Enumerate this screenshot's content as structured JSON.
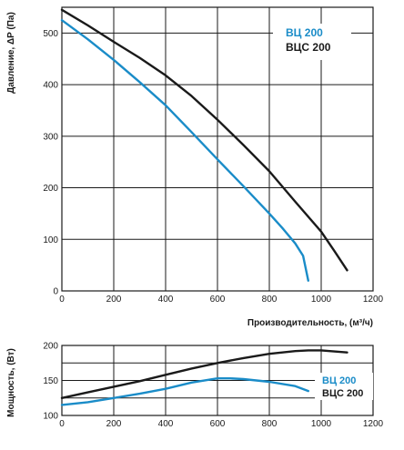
{
  "colors": {
    "blue": "#1a8cc8",
    "black": "#1a1a1a",
    "grid": "#1a1a1a"
  },
  "chart_data": [
    {
      "type": "line",
      "xlabel": "Производительность, (м³/ч)",
      "ylabel": "Давление, ΔP (Па)",
      "xlim": [
        0,
        1200
      ],
      "ylim": [
        0,
        550
      ],
      "x_ticks": [
        "0",
        "200",
        "400",
        "600",
        "800",
        "1000",
        "1200"
      ],
      "y_ticks": [
        "0",
        "100",
        "200",
        "300",
        "400",
        "500"
      ],
      "grid": true,
      "legend": "top-right",
      "series": [
        {
          "name": "ВЦ 200",
          "color": "#1a8cc8",
          "x": [
            0,
            100,
            200,
            300,
            400,
            500,
            600,
            700,
            800,
            850,
            900,
            930,
            950
          ],
          "y": [
            525,
            488,
            448,
            405,
            360,
            308,
            255,
            203,
            150,
            122,
            92,
            68,
            20
          ]
        },
        {
          "name": "ВЦС 200",
          "color": "#1a1a1a",
          "x": [
            0,
            100,
            200,
            300,
            400,
            500,
            600,
            700,
            800,
            900,
            1000,
            1050,
            1100
          ],
          "y": [
            545,
            515,
            483,
            452,
            418,
            378,
            332,
            283,
            232,
            173,
            115,
            78,
            40
          ]
        }
      ]
    },
    {
      "type": "line",
      "ylabel": "Мощность, (Вт)",
      "xlim": [
        0,
        1200
      ],
      "ylim": [
        100,
        200
      ],
      "x_ticks": [
        "0",
        "200",
        "400",
        "600",
        "800",
        "1000",
        "1200"
      ],
      "y_ticks": [
        "100",
        "150",
        "200"
      ],
      "grid": true,
      "legend": "right",
      "series": [
        {
          "name": "ВЦ 200",
          "color": "#1a8cc8",
          "x": [
            0,
            100,
            200,
            300,
            400,
            500,
            600,
            650,
            700,
            800,
            900,
            950
          ],
          "y": [
            115,
            119,
            125,
            131,
            138,
            147,
            153,
            153,
            152,
            148,
            142,
            135
          ]
        },
        {
          "name": "ВЦС 200",
          "color": "#1a1a1a",
          "x": [
            0,
            100,
            200,
            300,
            400,
            500,
            600,
            700,
            800,
            900,
            950,
            1000,
            1100
          ],
          "y": [
            125,
            133,
            141,
            149,
            158,
            167,
            175,
            182,
            188,
            192,
            193,
            193,
            190
          ]
        }
      ]
    }
  ]
}
